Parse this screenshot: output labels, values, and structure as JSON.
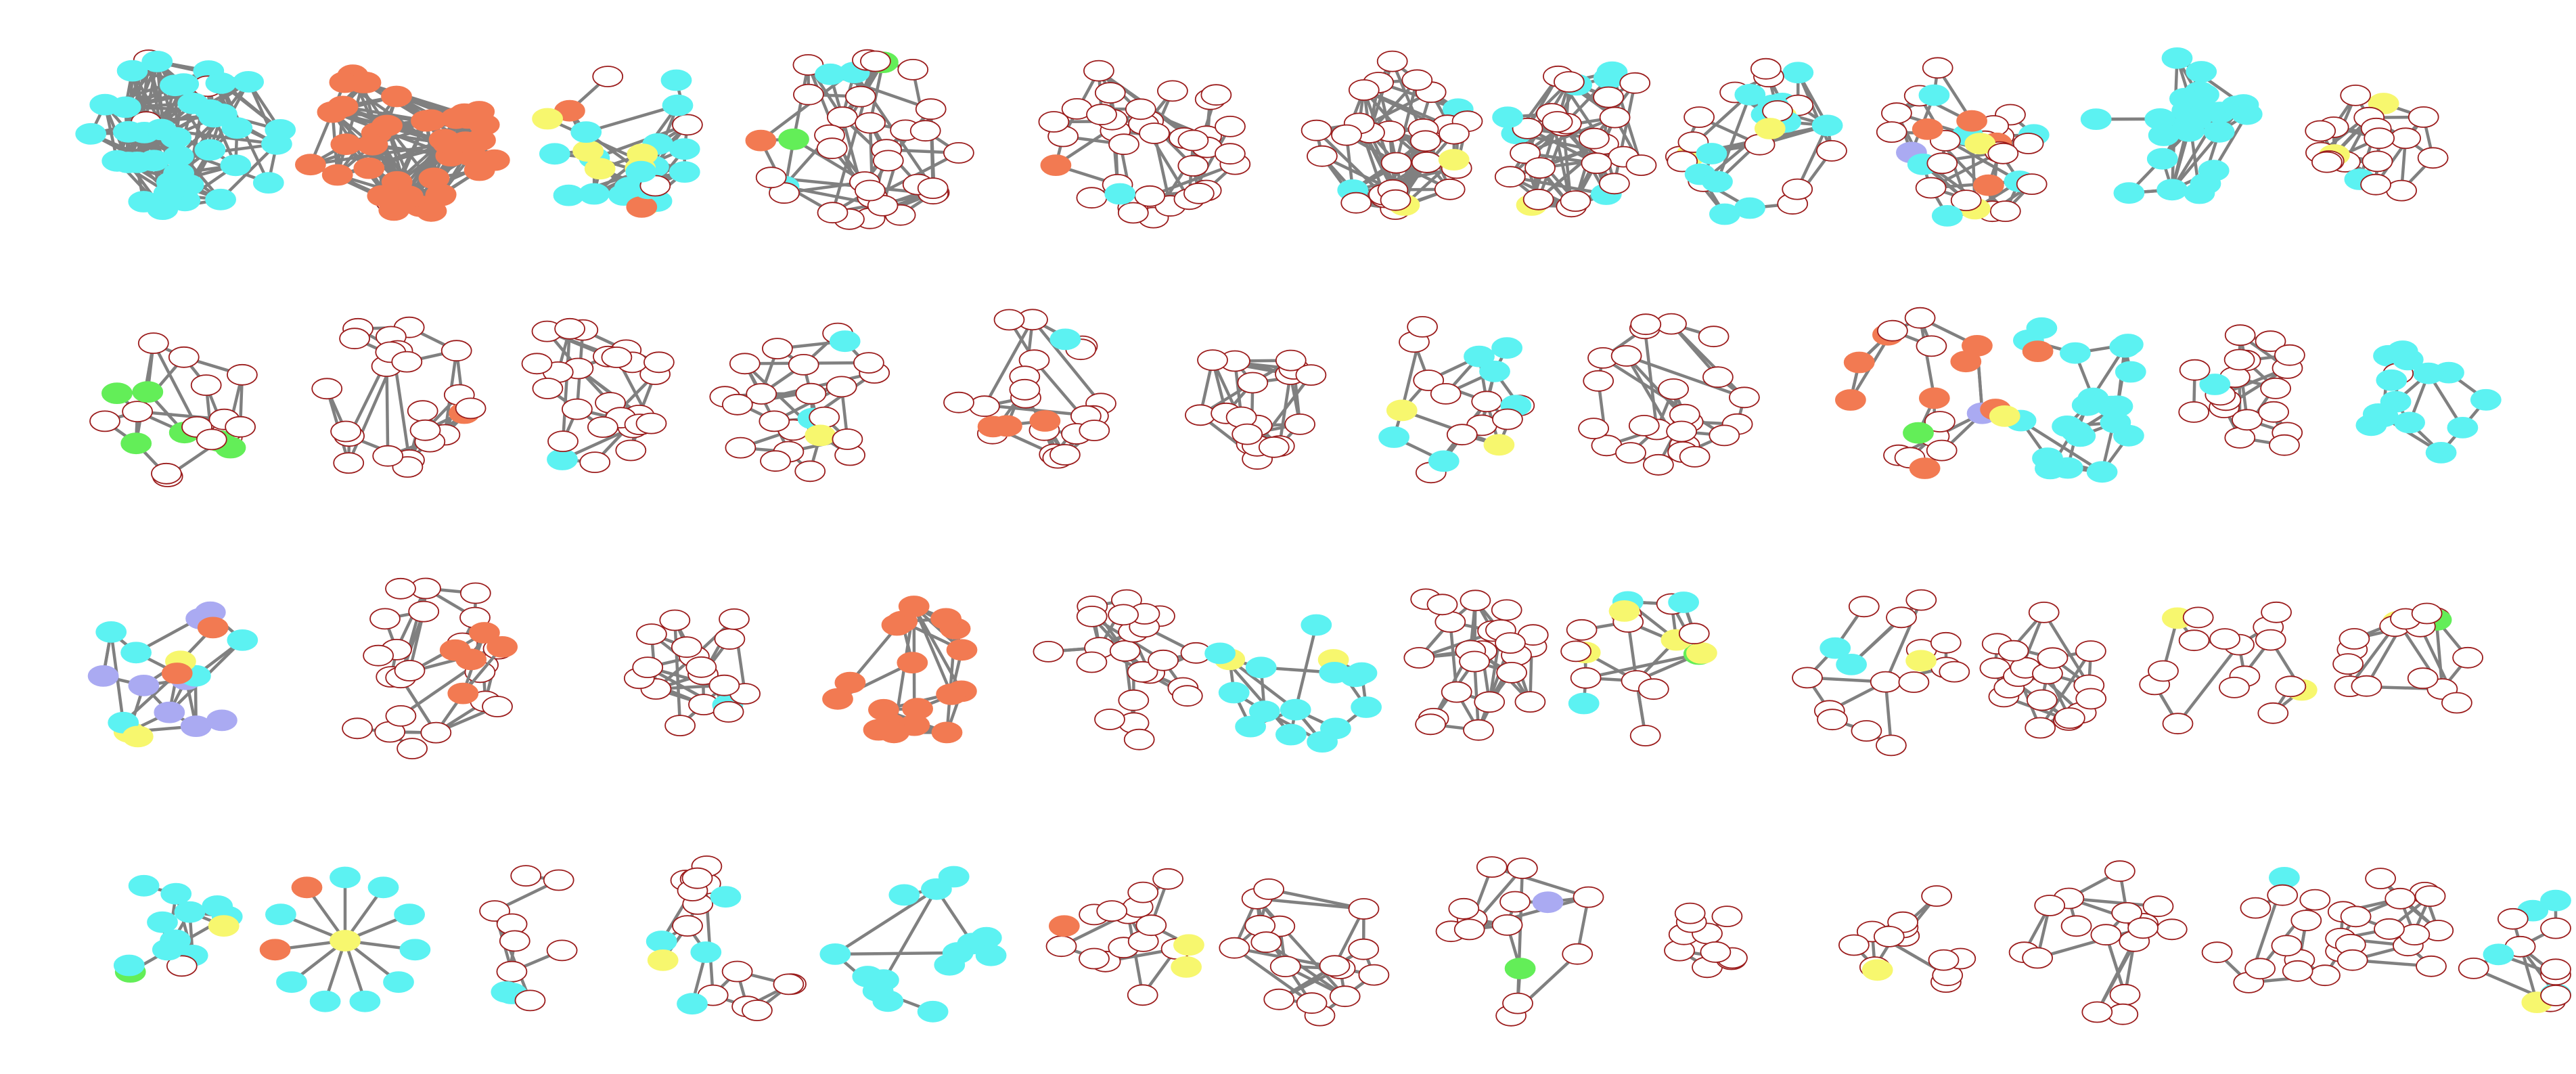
{
  "figure": {
    "description_visible_text": "",
    "node_outline_color": "#9b1c1c",
    "edge_color": "#808080",
    "palette": {
      "white": "#ffffff",
      "cyan": "#5cf2f2",
      "orange": "#f27a52",
      "yellow": "#f7f76e",
      "green": "#63ee58",
      "lavender": "#aaaaf2"
    },
    "rows": [
      {
        "graphs": [
          {
            "id": "g-1-1",
            "size": "large",
            "density": 0.45,
            "nodes": {
              "cyan": 38,
              "white": 3
            }
          },
          {
            "id": "g-1-2",
            "size": "large",
            "density": 0.5,
            "nodes": {
              "orange": 40,
              "white": 1
            }
          },
          {
            "id": "g-1-3",
            "size": "medium",
            "density": 0.4,
            "nodes": {
              "cyan": 16,
              "yellow": 6,
              "orange": 2,
              "white": 3
            }
          },
          {
            "id": "g-1-4",
            "size": "large",
            "density": 0.22,
            "nodes": {
              "white": 30,
              "cyan": 3,
              "orange": 1,
              "green": 2
            }
          },
          {
            "id": "g-1-5",
            "size": "large",
            "density": 0.18,
            "nodes": {
              "white": 34,
              "cyan": 1,
              "orange": 1
            }
          },
          {
            "id": "g-1-6",
            "size": "medium",
            "density": 0.55,
            "nodes": {
              "white": 26,
              "cyan": 2,
              "yellow": 2
            }
          },
          {
            "id": "g-1-7",
            "size": "medium",
            "density": 0.5,
            "nodes": {
              "white": 22,
              "cyan": 6,
              "yellow": 1
            }
          },
          {
            "id": "g-1-8",
            "size": "medium",
            "density": 0.25,
            "nodes": {
              "cyan": 12,
              "yellow": 3,
              "white": 14
            }
          },
          {
            "id": "g-1-9",
            "size": "medium",
            "density": 0.22,
            "nodes": {
              "white": 18,
              "cyan": 6,
              "yellow": 2,
              "lavender": 1,
              "orange": 4
            }
          },
          {
            "id": "g-1-10",
            "size": "medium",
            "density": 0.3,
            "nodes": {
              "cyan": 26
            }
          },
          {
            "id": "g-1-11",
            "size": "small",
            "density": 0.5,
            "nodes": {
              "white": 16,
              "cyan": 1,
              "yellow": 2
            }
          }
        ]
      },
      {
        "graphs": [
          {
            "id": "g-2-1",
            "size": "medium",
            "density": 0.45,
            "nodes": {
              "white": 14,
              "green": 6
            }
          },
          {
            "id": "g-2-2",
            "size": "medium",
            "density": 0.35,
            "nodes": {
              "white": 22,
              "orange": 1
            }
          },
          {
            "id": "g-2-3",
            "size": "medium",
            "density": 0.35,
            "nodes": {
              "white": 24,
              "cyan": 1
            }
          },
          {
            "id": "g-2-4",
            "size": "medium",
            "density": 0.3,
            "nodes": {
              "white": 20,
              "cyan": 2,
              "yellow": 1
            }
          },
          {
            "id": "g-2-5",
            "size": "medium",
            "density": 0.25,
            "nodes": {
              "white": 20,
              "cyan": 1,
              "orange": 3
            }
          },
          {
            "id": "g-2-6",
            "size": "small",
            "density": 0.45,
            "nodes": {
              "white": 18
            }
          },
          {
            "id": "g-2-7",
            "size": "medium",
            "density": 0.3,
            "nodes": {
              "white": 10,
              "cyan": 6,
              "yellow": 2
            }
          },
          {
            "id": "g-2-8",
            "size": "medium",
            "density": 0.25,
            "nodes": {
              "white": 24
            }
          },
          {
            "id": "g-2-9",
            "size": "medium",
            "density": 0.2,
            "nodes": {
              "white": 8,
              "orange": 8,
              "green": 1,
              "lavender": 1
            }
          },
          {
            "id": "g-2-10",
            "size": "medium",
            "density": 0.3,
            "nodes": {
              "cyan": 20,
              "orange": 1,
              "yellow": 1
            }
          },
          {
            "id": "g-2-11",
            "size": "small",
            "density": 0.45,
            "nodes": {
              "white": 18,
              "cyan": 1
            }
          },
          {
            "id": "g-2-12",
            "size": "small",
            "density": 0.35,
            "nodes": {
              "cyan": 14,
              "white": 1
            }
          }
        ]
      },
      {
        "graphs": [
          {
            "id": "g-3-1",
            "size": "medium",
            "density": 0.3,
            "nodes": {
              "lavender": 8,
              "cyan": 5,
              "yellow": 3,
              "orange": 2
            }
          },
          {
            "id": "g-3-2",
            "size": "large",
            "density": 0.15,
            "nodes": {
              "white": 22
            }
          },
          {
            "id": "g-3-3",
            "size": "tiny",
            "density": 0.8,
            "nodes": {
              "orange": 5
            }
          },
          {
            "id": "g-3-4",
            "size": "small",
            "density": 0.45,
            "nodes": {
              "white": 16,
              "cyan": 1
            }
          },
          {
            "id": "g-3-5",
            "size": "medium",
            "density": 0.3,
            "nodes": {
              "orange": 18
            }
          },
          {
            "id": "g-3-6",
            "size": "medium",
            "density": 0.35,
            "nodes": {
              "white": 22
            }
          },
          {
            "id": "g-3-7",
            "size": "medium",
            "density": 0.35,
            "nodes": {
              "cyan": 14,
              "yellow": 2
            }
          },
          {
            "id": "g-3-8",
            "size": "medium",
            "density": 0.35,
            "nodes": {
              "white": 22
            }
          },
          {
            "id": "g-3-9",
            "size": "medium",
            "density": 0.3,
            "nodes": {
              "white": 10,
              "cyan": 3,
              "yellow": 4,
              "green": 1
            }
          },
          {
            "id": "g-3-10",
            "size": "medium",
            "density": 0.2,
            "nodes": {
              "white": 14,
              "cyan": 2,
              "yellow": 1
            }
          },
          {
            "id": "g-3-11",
            "size": "small",
            "density": 0.5,
            "nodes": {
              "white": 18
            }
          },
          {
            "id": "g-3-12",
            "size": "medium",
            "density": 0.2,
            "nodes": {
              "white": 14,
              "yellow": 2
            }
          },
          {
            "id": "g-3-13",
            "size": "small",
            "density": 0.35,
            "nodes": {
              "white": 14,
              "green": 1,
              "yellow": 1
            }
          }
        ]
      },
      {
        "graphs": [
          {
            "id": "g-4-1",
            "size": "small",
            "density": 0.35,
            "nodes": {
              "cyan": 10,
              "yellow": 1,
              "green": 1,
              "white": 1
            }
          },
          {
            "id": "g-4-2",
            "size": "star",
            "density": 0.1,
            "nodes": {
              "yellow": 1,
              "cyan": 9,
              "orange": 2
            }
          },
          {
            "id": "g-4-3",
            "size": "tree",
            "density": 0.1,
            "nodes": {
              "white": 8,
              "cyan": 2
            }
          },
          {
            "id": "g-4-4",
            "size": "medium",
            "density": 0.2,
            "nodes": {
              "white": 14,
              "cyan": 4,
              "yellow": 1
            }
          },
          {
            "id": "g-4-5",
            "size": "medium",
            "density": 0.2,
            "nodes": {
              "cyan": 14
            }
          },
          {
            "id": "g-4-6",
            "size": "medium",
            "density": 0.2,
            "nodes": {
              "white": 14,
              "yellow": 2,
              "orange": 1
            }
          },
          {
            "id": "g-4-7",
            "size": "medium",
            "density": 0.3,
            "nodes": {
              "white": 16
            }
          },
          {
            "id": "g-4-8",
            "size": "medium",
            "density": 0.2,
            "nodes": {
              "white": 12,
              "lavender": 1,
              "green": 1
            }
          },
          {
            "id": "g-4-9",
            "size": "tiny",
            "density": 0.6,
            "nodes": {
              "white": 10
            }
          },
          {
            "id": "g-4-10",
            "size": "small",
            "density": 0.3,
            "nodes": {
              "white": 12,
              "yellow": 1
            }
          },
          {
            "id": "g-4-11",
            "size": "medium",
            "density": 0.2,
            "nodes": {
              "white": 16
            }
          },
          {
            "id": "g-4-12",
            "size": "small",
            "density": 0.3,
            "nodes": {
              "white": 12,
              "cyan": 1
            }
          },
          {
            "id": "g-4-13",
            "size": "small",
            "density": 0.55,
            "nodes": {
              "white": 14
            }
          },
          {
            "id": "g-4-14",
            "size": "small",
            "density": 0.3,
            "nodes": {
              "white": 8,
              "cyan": 4,
              "yellow": 1
            }
          }
        ]
      }
    ]
  }
}
